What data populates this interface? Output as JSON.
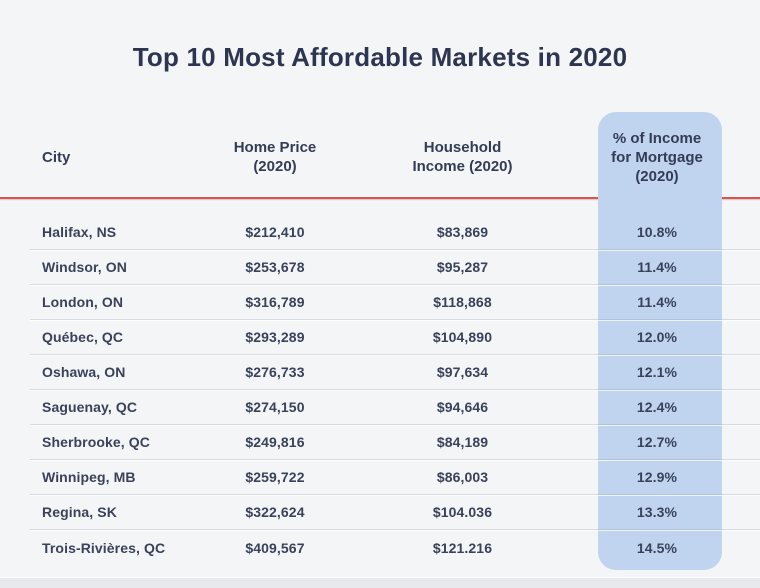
{
  "title": "Top 10 Most Affordable Markets in 2020",
  "colors": {
    "background": "#f4f5f7",
    "highlight_panel": "#c0d4ef",
    "accent_line": "#cf5952",
    "text": "#343d58"
  },
  "table": {
    "headers": {
      "city": "City",
      "home_price": "Home Price\n(2020)",
      "household_income": "Household\nIncome (2020)",
      "pct_income": "% of Income\nfor Mortgage\n(2020)"
    },
    "rows": [
      {
        "city": "Halifax, NS",
        "home_price": "$212,410",
        "household_income": "$83,869",
        "pct_income": "10.8%"
      },
      {
        "city": "Windsor, ON",
        "home_price": "$253,678",
        "household_income": "$95,287",
        "pct_income": "11.4%"
      },
      {
        "city": "London, ON",
        "home_price": "$316,789",
        "household_income": "$118,868",
        "pct_income": "11.4%"
      },
      {
        "city": "Québec, QC",
        "home_price": "$293,289",
        "household_income": "$104,890",
        "pct_income": "12.0%"
      },
      {
        "city": "Oshawa, ON",
        "home_price": "$276,733",
        "household_income": "$97,634",
        "pct_income": "12.1%"
      },
      {
        "city": "Saguenay, QC",
        "home_price": "$274,150",
        "household_income": "$94,646",
        "pct_income": "12.4%"
      },
      {
        "city": "Sherbrooke, QC",
        "home_price": "$249,816",
        "household_income": "$84,189",
        "pct_income": "12.7%"
      },
      {
        "city": "Winnipeg, MB",
        "home_price": "$259,722",
        "household_income": "$86,003",
        "pct_income": "12.9%"
      },
      {
        "city": "Regina, SK",
        "home_price": "$322,624",
        "household_income": "$104.036",
        "pct_income": "13.3%"
      },
      {
        "city": "Trois-Rivières, QC",
        "home_price": "$409,567",
        "household_income": "$121.216",
        "pct_income": "14.5%"
      }
    ]
  },
  "chart_data": {
    "type": "table",
    "title": "Top 10 Most Affordable Markets in 2020",
    "columns": [
      "City",
      "Home Price (2020)",
      "Household Income (2020)",
      "% of Income for Mortgage (2020)"
    ],
    "highlighted_column": "% of Income for Mortgage (2020)",
    "rows": [
      [
        "Halifax, NS",
        "$212,410",
        "$83,869",
        "10.8%"
      ],
      [
        "Windsor, ON",
        "$253,678",
        "$95,287",
        "11.4%"
      ],
      [
        "London, ON",
        "$316,789",
        "$118,868",
        "11.4%"
      ],
      [
        "Québec, QC",
        "$293,289",
        "$104,890",
        "12.0%"
      ],
      [
        "Oshawa, ON",
        "$276,733",
        "$97,634",
        "12.1%"
      ],
      [
        "Saguenay, QC",
        "$274,150",
        "$94,646",
        "12.4%"
      ],
      [
        "Sherbrooke, QC",
        "$249,816",
        "$84,189",
        "12.7%"
      ],
      [
        "Winnipeg, MB",
        "$259,722",
        "$86,003",
        "12.9%"
      ],
      [
        "Regina, SK",
        "$322,624",
        "$104.036",
        "13.3%"
      ],
      [
        "Trois-Rivières, QC",
        "$409,567",
        "$121.216",
        "14.5%"
      ]
    ]
  }
}
